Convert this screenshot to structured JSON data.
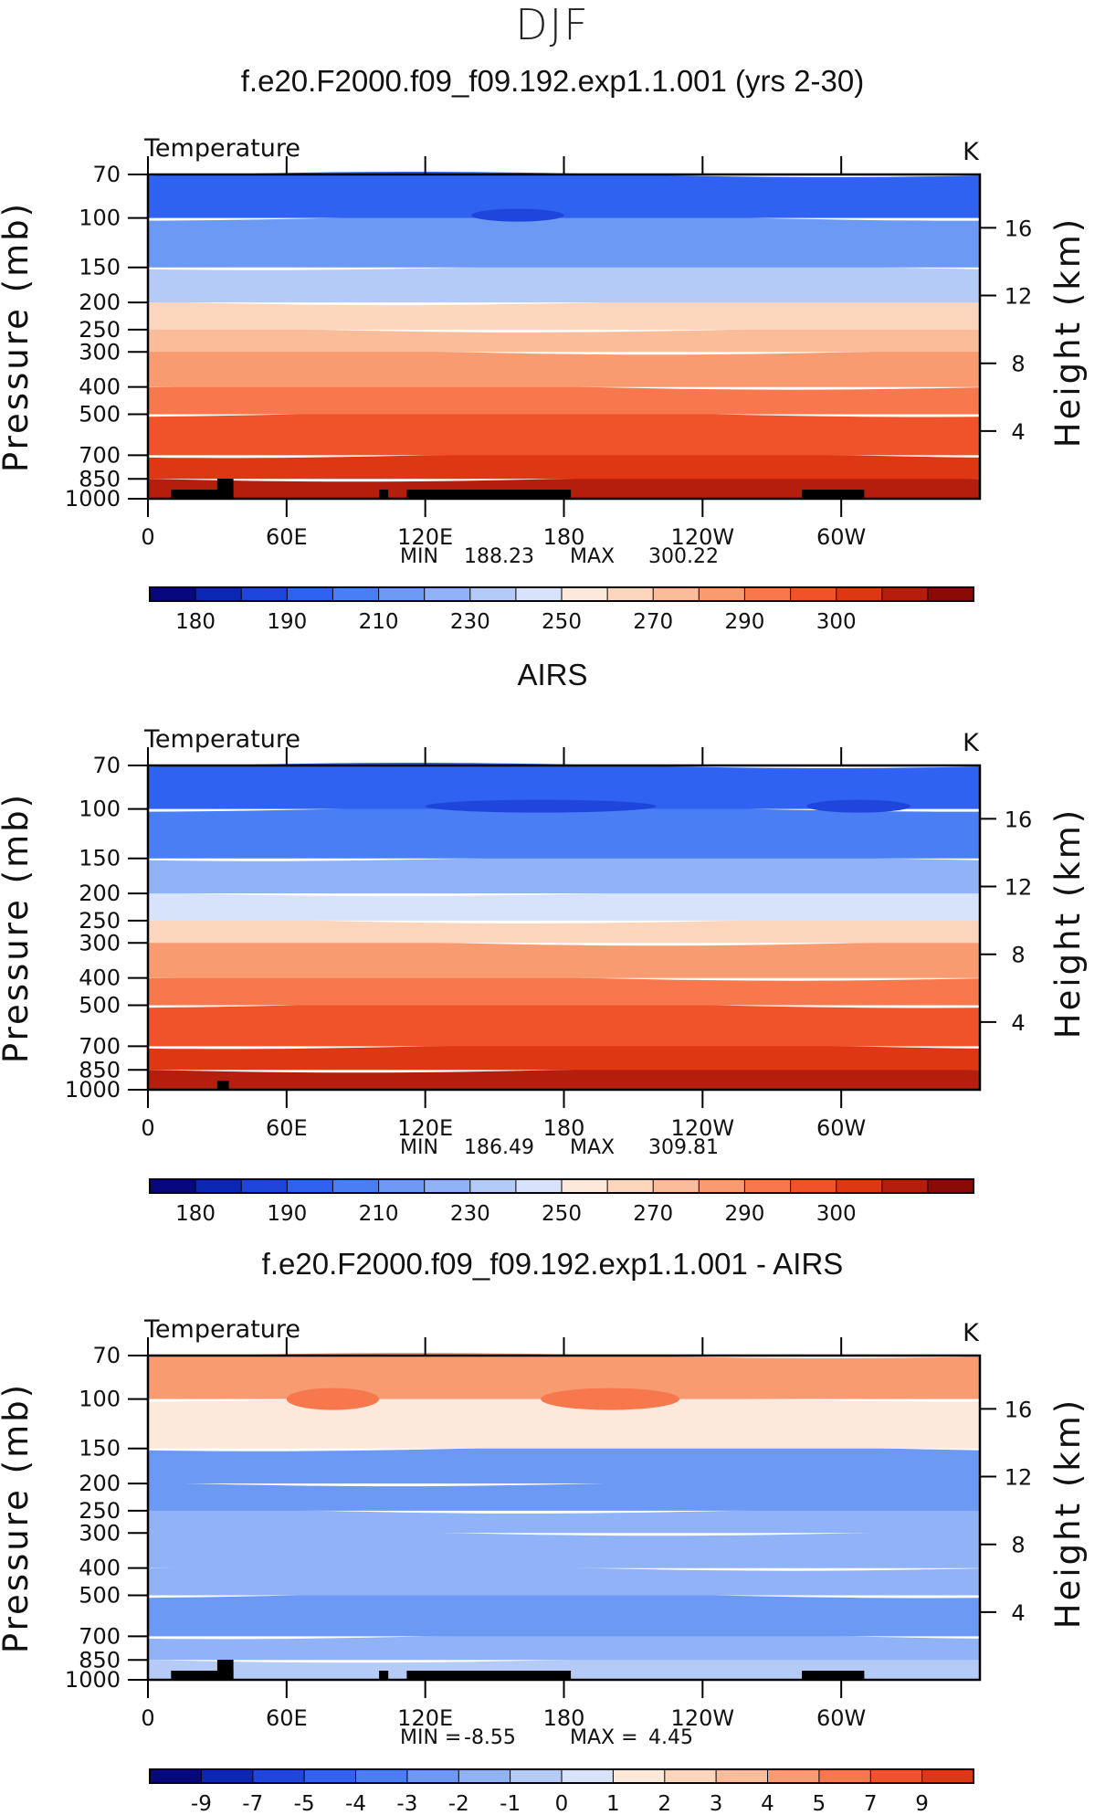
{
  "page": {
    "title": "DJF"
  },
  "colors": {
    "abs_palette": [
      "#08087e",
      "#0a28b4",
      "#1f46dc",
      "#2f62f0",
      "#4a7ef4",
      "#6c99f4",
      "#90b2f6",
      "#b4cbf8",
      "#d6e3fb",
      "#fde9dc",
      "#fcd5bd",
      "#fbbc9a",
      "#f99b71",
      "#f6784c",
      "#f0522a",
      "#dd3714",
      "#b51e0c",
      "#8a0a06"
    ],
    "diff_palette": [
      "#08087e",
      "#0a28b4",
      "#1f46dc",
      "#2f62f0",
      "#4a7ef4",
      "#6c99f4",
      "#90b2f6",
      "#b4cbf8",
      "#d6e3fb",
      "#fde9dc",
      "#fcd5bd",
      "#fbbc9a",
      "#f99b71",
      "#f6784c",
      "#f0522a",
      "#dd3714"
    ],
    "land": "#000000"
  },
  "chart_data": [
    {
      "type": "heatmap",
      "title": "f.e20.F2000.f09_f09.192.exp1.1.001 (yrs 2-30)",
      "left_label": "Temperature",
      "units": "K",
      "ylabel": "Pressure (mb)",
      "ylabel_right": "Height (km)",
      "x_ticks": [
        "0",
        "60E",
        "120E",
        "180",
        "120W",
        "60W"
      ],
      "y_ticks": [
        "70",
        "100",
        "150",
        "200",
        "250",
        "300",
        "400",
        "500",
        "700",
        "850",
        "1000"
      ],
      "right_ticks": [
        "16",
        "12",
        "8",
        "4"
      ],
      "min_label": "MIN",
      "min_value": "188.23",
      "max_label": "MAX",
      "max_value": "300.22",
      "colorbar_labels": [
        "180",
        "190",
        "210",
        "230",
        "250",
        "270",
        "290",
        "300"
      ],
      "levels_bottom_to_top": [
        {
          "level": "1000",
          "color_index": 16
        },
        {
          "level": "850",
          "color_index": 15
        },
        {
          "level": "700",
          "color_index": 14
        },
        {
          "level": "500",
          "color_index": 13
        },
        {
          "level": "400",
          "color_index": 12
        },
        {
          "level": "300",
          "color_index": 11
        },
        {
          "level": "250",
          "color_index": 10
        },
        {
          "level": "200",
          "color_index": 7
        },
        {
          "level": "150",
          "color_index": 5
        },
        {
          "level": "100",
          "color_index": 3
        },
        {
          "level": "70",
          "color_index": 3
        }
      ],
      "cold_patches": [
        {
          "lon_start": 140,
          "lon_end": 180,
          "level": "100"
        }
      ]
    },
    {
      "type": "heatmap",
      "title": "AIRS",
      "left_label": "Temperature",
      "units": "K",
      "ylabel": "Pressure (mb)",
      "ylabel_right": "Height (km)",
      "x_ticks": [
        "0",
        "60E",
        "120E",
        "180",
        "120W",
        "60W"
      ],
      "y_ticks": [
        "70",
        "100",
        "150",
        "200",
        "250",
        "300",
        "400",
        "500",
        "700",
        "850",
        "1000"
      ],
      "right_ticks": [
        "16",
        "12",
        "8",
        "4"
      ],
      "min_label": "MIN",
      "min_value": "186.49",
      "max_label": "MAX",
      "max_value": "309.81",
      "colorbar_labels": [
        "180",
        "190",
        "210",
        "230",
        "250",
        "270",
        "290",
        "300"
      ],
      "levels_bottom_to_top": [
        {
          "level": "1000",
          "color_index": 16
        },
        {
          "level": "850",
          "color_index": 15
        },
        {
          "level": "700",
          "color_index": 14
        },
        {
          "level": "500",
          "color_index": 13
        },
        {
          "level": "400",
          "color_index": 12
        },
        {
          "level": "300",
          "color_index": 10
        },
        {
          "level": "250",
          "color_index": 8
        },
        {
          "level": "200",
          "color_index": 6
        },
        {
          "level": "150",
          "color_index": 4
        },
        {
          "level": "100",
          "color_index": 3
        },
        {
          "level": "70",
          "color_index": 3
        }
      ],
      "cold_patches": [
        {
          "lon_start": 120,
          "lon_end": 220,
          "level": "100"
        },
        {
          "lon_start": 285,
          "lon_end": 330,
          "level": "100"
        }
      ]
    },
    {
      "type": "heatmap",
      "title": "f.e20.F2000.f09_f09.192.exp1.1.001 - AIRS",
      "left_label": "Temperature",
      "units": "K",
      "ylabel": "Pressure (mb)",
      "ylabel_right": "Height (km)",
      "x_ticks": [
        "0",
        "60E",
        "120E",
        "180",
        "120W",
        "60W"
      ],
      "y_ticks": [
        "70",
        "100",
        "150",
        "200",
        "250",
        "300",
        "400",
        "500",
        "700",
        "850",
        "1000"
      ],
      "right_ticks": [
        "16",
        "12",
        "8",
        "4"
      ],
      "min_label": "MIN =",
      "min_value": "-8.55",
      "max_label": "MAX =",
      "max_value": "4.45",
      "colorbar_labels": [
        "-9",
        "-7",
        "-5",
        "-4",
        "-3",
        "-2",
        "-1",
        "0",
        "1",
        "2",
        "3",
        "4",
        "5",
        "7",
        "9"
      ],
      "levels_bottom_to_top": [
        {
          "level": "1000",
          "color_index": 7
        },
        {
          "level": "850",
          "color_index": 6
        },
        {
          "level": "700",
          "color_index": 5
        },
        {
          "level": "500",
          "color_index": 6
        },
        {
          "level": "400",
          "color_index": 6
        },
        {
          "level": "300",
          "color_index": 6
        },
        {
          "level": "250",
          "color_index": 5
        },
        {
          "level": "200",
          "color_index": 5
        },
        {
          "level": "150",
          "color_index": 9
        },
        {
          "level": "100",
          "color_index": 12
        },
        {
          "level": "70",
          "color_index": 12
        }
      ],
      "warm_patches": [
        {
          "lon_start": 170,
          "lon_end": 230,
          "level": "100"
        },
        {
          "lon_start": 60,
          "lon_end": 100,
          "level": "100"
        }
      ]
    }
  ]
}
